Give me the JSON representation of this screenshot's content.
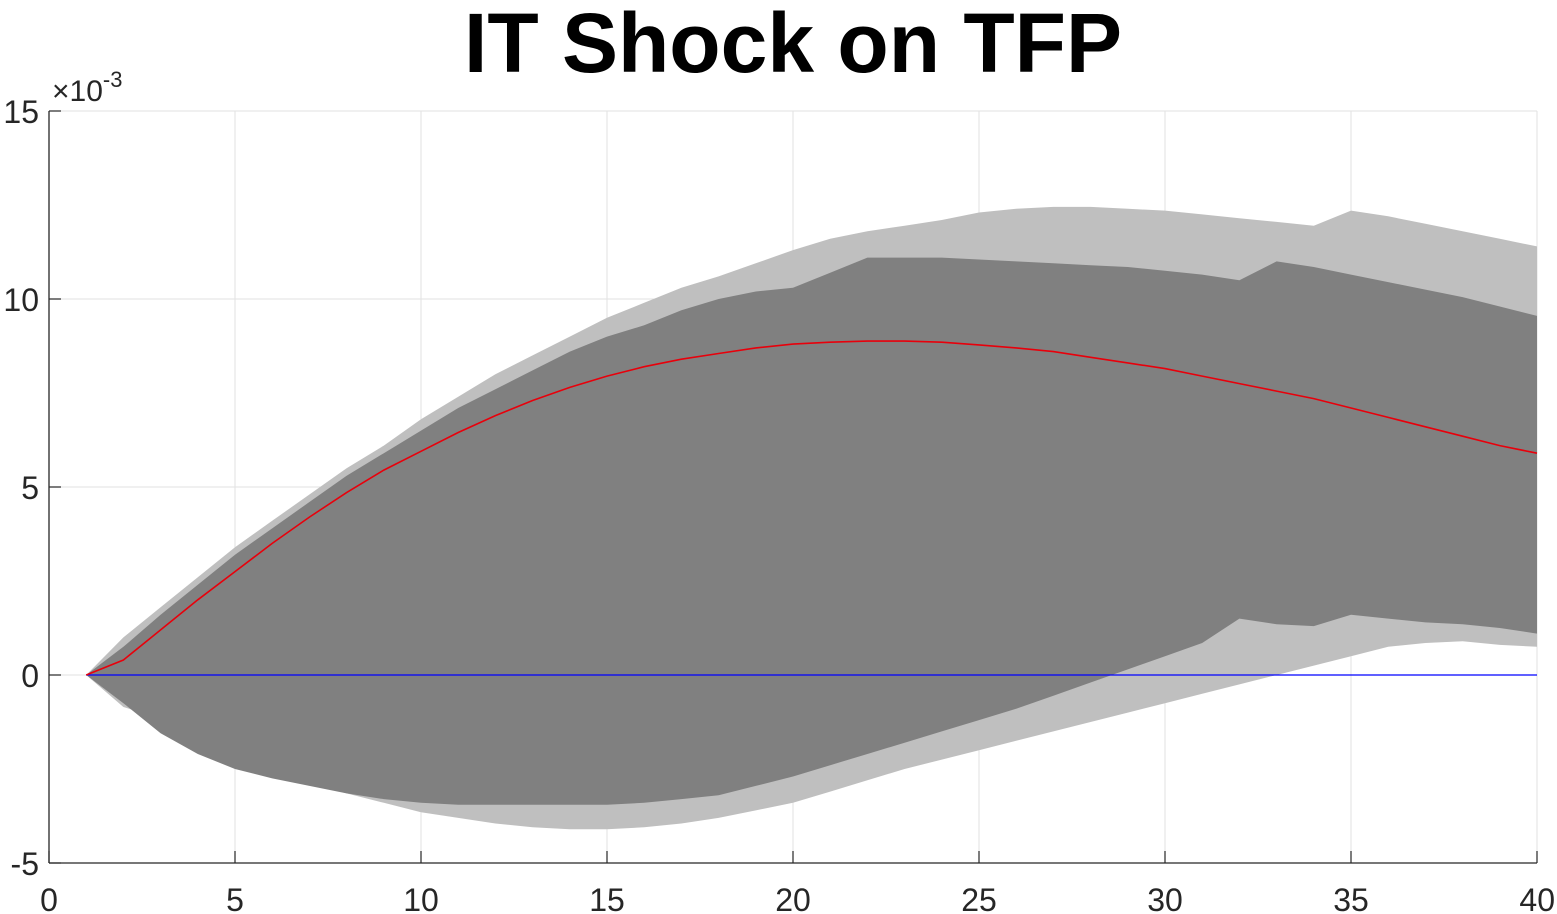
{
  "chart_data": {
    "type": "area",
    "title": "IT Shock on TFP",
    "xlabel": "",
    "ylabel": "",
    "y_exponent_label": {
      "times": "×10",
      "power": "-3"
    },
    "xlim": [
      0,
      40
    ],
    "ylim": [
      -5,
      15
    ],
    "y_scale_factor": 0.001,
    "grid": true,
    "x_ticks": [
      0,
      5,
      10,
      15,
      20,
      25,
      30,
      35,
      40
    ],
    "y_ticks": [
      -5,
      0,
      5,
      10,
      15
    ],
    "x_tick_labels": [
      "0",
      "5",
      "10",
      "15",
      "20",
      "25",
      "30",
      "35",
      "40"
    ],
    "y_tick_labels": [
      "-5",
      "0",
      "5",
      "10",
      "15"
    ],
    "x": [
      1,
      2,
      3,
      4,
      5,
      6,
      7,
      8,
      9,
      10,
      11,
      12,
      13,
      14,
      15,
      16,
      17,
      18,
      19,
      20,
      21,
      22,
      23,
      24,
      25,
      26,
      27,
      28,
      29,
      30,
      31,
      32,
      33,
      34,
      35,
      36,
      37,
      38,
      39,
      40
    ],
    "outer_band": {
      "color": "#bfbfbf",
      "upper": [
        0.0,
        1.0,
        1.8,
        2.6,
        3.4,
        4.1,
        4.8,
        5.5,
        6.1,
        6.8,
        7.4,
        8.0,
        8.5,
        9.0,
        9.5,
        9.9,
        10.3,
        10.6,
        10.95,
        11.3,
        11.6,
        11.8,
        11.95,
        12.1,
        12.3,
        12.4,
        12.45,
        12.45,
        12.4,
        12.35,
        12.25,
        12.15,
        12.05,
        11.95,
        12.35,
        12.2,
        12.0,
        11.8,
        11.6,
        11.4
      ],
      "lower": [
        0.0,
        -0.85,
        -1.15,
        -1.7,
        -2.1,
        -2.5,
        -2.85,
        -3.15,
        -3.4,
        -3.65,
        -3.8,
        -3.95,
        -4.05,
        -4.1,
        -4.1,
        -4.05,
        -3.95,
        -3.8,
        -3.6,
        -3.4,
        -3.1,
        -2.8,
        -2.5,
        -2.25,
        -2.0,
        -1.75,
        -1.5,
        -1.25,
        -1.0,
        -0.75,
        -0.5,
        -0.25,
        0.0,
        0.25,
        0.5,
        0.75,
        0.85,
        0.9,
        0.8,
        0.75
      ]
    },
    "inner_band": {
      "color": "#808080",
      "upper": [
        0.0,
        0.75,
        1.6,
        2.4,
        3.2,
        3.9,
        4.6,
        5.3,
        5.9,
        6.5,
        7.1,
        7.6,
        8.1,
        8.6,
        9.0,
        9.3,
        9.7,
        10.0,
        10.2,
        10.3,
        10.7,
        11.1,
        11.1,
        11.1,
        11.05,
        11.0,
        10.95,
        10.9,
        10.85,
        10.75,
        10.65,
        10.5,
        11.0,
        10.85,
        10.65,
        10.45,
        10.25,
        10.05,
        9.8,
        9.55
      ],
      "lower": [
        0.0,
        -0.75,
        -1.55,
        -2.1,
        -2.5,
        -2.75,
        -2.95,
        -3.15,
        -3.3,
        -3.4,
        -3.45,
        -3.45,
        -3.45,
        -3.45,
        -3.45,
        -3.4,
        -3.3,
        -3.2,
        -2.95,
        -2.7,
        -2.4,
        -2.1,
        -1.8,
        -1.5,
        -1.2,
        -0.9,
        -0.55,
        -0.2,
        0.15,
        0.5,
        0.85,
        1.5,
        1.35,
        1.3,
        1.6,
        1.5,
        1.4,
        1.35,
        1.25,
        1.1
      ]
    },
    "series": [
      {
        "color": "#e8000b",
        "values": [
          0.0,
          0.4,
          1.2,
          2.0,
          2.75,
          3.5,
          4.2,
          4.85,
          5.45,
          5.95,
          6.45,
          6.9,
          7.3,
          7.65,
          7.95,
          8.2,
          8.4,
          8.55,
          8.7,
          8.8,
          8.85,
          8.88,
          8.88,
          8.85,
          8.78,
          8.7,
          8.6,
          8.45,
          8.3,
          8.15,
          7.95,
          7.75,
          7.55,
          7.35,
          7.1,
          6.85,
          6.6,
          6.35,
          6.1,
          5.9
        ]
      }
    ],
    "reference_line": {
      "y": 0,
      "color": "#0000ff"
    }
  }
}
